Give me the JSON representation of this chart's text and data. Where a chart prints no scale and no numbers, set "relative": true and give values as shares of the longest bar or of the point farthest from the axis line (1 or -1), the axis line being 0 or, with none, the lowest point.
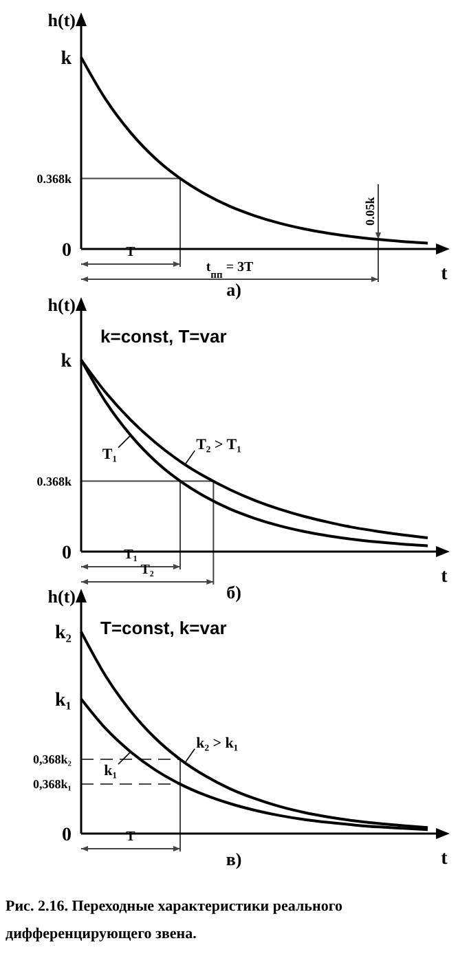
{
  "chart_data": [
    {
      "type": "line",
      "title": "а)",
      "xlabel": "t",
      "ylabel": "h(t)",
      "relative": true,
      "marker": "none",
      "line_style": "solid",
      "categories": [
        null,
        null,
        null,
        null,
        null,
        null,
        null,
        null,
        null,
        null,
        null,
        null,
        null,
        null,
        null
      ],
      "series": [
        {
          "color": "#000000",
          "values": [
            1,
            0.779,
            0.607,
            0.472,
            0.368,
            0.287,
            0.223,
            0.174,
            0.135,
            0.105,
            0.082,
            0.064,
            0.05,
            0.039,
            0.03
          ]
        }
      ],
      "ref_lines": [
        {
          "axis": "y",
          "value": 0.368,
          "label": "0.368k",
          "color": "#444444"
        }
      ],
      "annotations": [
        {
          "text": "0.05k",
          "y": 0.05
        },
        "k",
        "0",
        "T",
        "t$_{пп}$ = 3T"
      ]
    },
    {
      "type": "line",
      "title": "б)",
      "subtitle": "k=const, T=var",
      "xlabel": "t",
      "ylabel": "h(t)",
      "relative": true,
      "marker": "none",
      "line_style": "solid",
      "categories": [
        null,
        null,
        null,
        null,
        null,
        null,
        null,
        null,
        null,
        null,
        null,
        null,
        null,
        null,
        null
      ],
      "series": [
        {
          "name": "T₁",
          "color": "#000000",
          "values": [
            1,
            0.779,
            0.607,
            0.472,
            0.368,
            0.287,
            0.223,
            0.174,
            0.135,
            0.105,
            0.082,
            0.064,
            0.05,
            0.039,
            0.03
          ]
        },
        {
          "name": "T₂ > T₁",
          "color": "#000000",
          "values": [
            1,
            0.829,
            0.687,
            0.569,
            0.471,
            0.391,
            0.324,
            0.268,
            0.222,
            0.184,
            0.153,
            0.126,
            0.105,
            0.087,
            0.072
          ]
        }
      ],
      "ref_lines": [
        {
          "axis": "y",
          "value": 0.368,
          "label": "0.368k",
          "color": "#444444"
        }
      ],
      "annotations": [
        "k",
        "0",
        "T₁",
        "T₂"
      ]
    },
    {
      "type": "line",
      "title": "в)",
      "subtitle": "T=const, k=var",
      "xlabel": "t",
      "ylabel": "h(t)",
      "relative": true,
      "marker": "none",
      "line_style": "solid",
      "categories": [
        null,
        null,
        null,
        null,
        null,
        null,
        null,
        null,
        null,
        null,
        null,
        null,
        null,
        null,
        null
      ],
      "series": [
        {
          "name": "k₁",
          "color": "#000000",
          "values": [
            0.667,
            0.519,
            0.405,
            0.315,
            0.245,
            0.191,
            0.149,
            0.116,
            0.09,
            0.07,
            0.055,
            0.043,
            0.033,
            0.026,
            0.02
          ]
        },
        {
          "name": "k₂ > k₁",
          "color": "#000000",
          "values": [
            1,
            0.779,
            0.607,
            0.472,
            0.368,
            0.287,
            0.223,
            0.174,
            0.135,
            0.105,
            0.082,
            0.064,
            0.05,
            0.039,
            0.03
          ]
        }
      ],
      "ref_lines": [
        {
          "axis": "y",
          "value": 0.245,
          "label": "0,368k₁",
          "color": "#444444",
          "line_style": "dashed"
        },
        {
          "axis": "y",
          "value": 0.368,
          "label": "0,368k₂",
          "color": "#444444",
          "line_style": "dashed"
        }
      ],
      "annotations": [
        "k₁",
        "k₂",
        "0",
        "T",
        "Рис. 2.16. Переходные характеристики реального дифференцирующего звена."
      ]
    }
  ]
}
